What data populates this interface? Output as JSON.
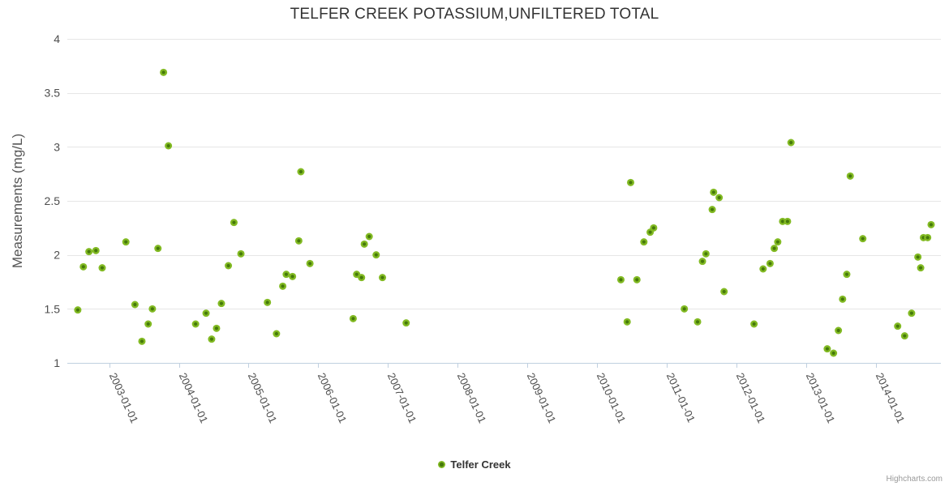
{
  "title": "TELFER CREEK POTASSIUM,UNFILTERED TOTAL",
  "legend": {
    "series_label": "Telfer Creek"
  },
  "credits": "Highcharts.com",
  "colors": {
    "marker_fill": "#82ba23",
    "marker_core": "#45790a",
    "grid": "#e6e6e6",
    "axis_line": "#c0d0e0",
    "title_text": "#333333",
    "axis_label": "#4d4d4d",
    "axis_title": "#555555",
    "legend_text": "#333333",
    "credits_text": "#999999"
  },
  "chart_data": {
    "type": "scatter",
    "title": "TELFER CREEK POTASSIUM,UNFILTERED TOTAL",
    "xlabel": "",
    "ylabel": "Measurements (mg/L)",
    "xlim": [
      2002.4,
      2014.93
    ],
    "ylim": [
      1,
      4
    ],
    "grid": "horizontal",
    "legend_position": "bottom-center",
    "y_ticks": [
      1,
      1.5,
      2,
      2.5,
      3,
      3.5,
      4
    ],
    "x_ticks": [
      {
        "year": 2003,
        "label": "2003-01-01"
      },
      {
        "year": 2004,
        "label": "2004-01-01"
      },
      {
        "year": 2005,
        "label": "2005-01-01"
      },
      {
        "year": 2006,
        "label": "2006-01-01"
      },
      {
        "year": 2007,
        "label": "2007-01-01"
      },
      {
        "year": 2008,
        "label": "2008-01-01"
      },
      {
        "year": 2009,
        "label": "2009-01-01"
      },
      {
        "year": 2010,
        "label": "2010-01-01"
      },
      {
        "year": 2011,
        "label": "2011-01-01"
      },
      {
        "year": 2012,
        "label": "2012-01-01"
      },
      {
        "year": 2013,
        "label": "2013-01-01"
      },
      {
        "year": 2014,
        "label": "2014-01-01"
      }
    ],
    "series": [
      {
        "name": "Telfer Creek",
        "points": [
          [
            2002.55,
            1.49
          ],
          [
            2002.63,
            1.89
          ],
          [
            2002.71,
            2.03
          ],
          [
            2002.81,
            2.04
          ],
          [
            2002.9,
            1.88
          ],
          [
            2003.24,
            2.12
          ],
          [
            2003.37,
            1.54
          ],
          [
            2003.47,
            1.2
          ],
          [
            2003.56,
            1.36
          ],
          [
            2003.62,
            1.5
          ],
          [
            2003.7,
            2.06
          ],
          [
            2003.78,
            3.69
          ],
          [
            2003.85,
            3.01
          ],
          [
            2004.24,
            1.36
          ],
          [
            2004.39,
            1.46
          ],
          [
            2004.47,
            1.22
          ],
          [
            2004.54,
            1.32
          ],
          [
            2004.61,
            1.55
          ],
          [
            2004.71,
            1.9
          ],
          [
            2004.79,
            2.3
          ],
          [
            2004.89,
            2.01
          ],
          [
            2005.27,
            1.56
          ],
          [
            2005.4,
            1.27
          ],
          [
            2005.49,
            1.71
          ],
          [
            2005.54,
            1.82
          ],
          [
            2005.63,
            1.8
          ],
          [
            2005.72,
            2.13
          ],
          [
            2005.75,
            2.77
          ],
          [
            2005.88,
            1.92
          ],
          [
            2006.5,
            1.41
          ],
          [
            2006.55,
            1.82
          ],
          [
            2006.62,
            1.79
          ],
          [
            2006.66,
            2.1
          ],
          [
            2006.73,
            2.17
          ],
          [
            2006.83,
            2.0
          ],
          [
            2006.92,
            1.79
          ],
          [
            2007.26,
            1.37
          ],
          [
            2010.34,
            1.77
          ],
          [
            2010.43,
            1.38
          ],
          [
            2010.48,
            2.67
          ],
          [
            2010.57,
            1.77
          ],
          [
            2010.67,
            2.12
          ],
          [
            2010.76,
            2.21
          ],
          [
            2010.81,
            2.25
          ],
          [
            2011.25,
            1.5
          ],
          [
            2011.44,
            1.38
          ],
          [
            2011.51,
            1.94
          ],
          [
            2011.56,
            2.01
          ],
          [
            2011.65,
            2.42
          ],
          [
            2011.67,
            2.58
          ],
          [
            2011.75,
            2.53
          ],
          [
            2011.82,
            1.66
          ],
          [
            2012.25,
            1.36
          ],
          [
            2012.38,
            1.87
          ],
          [
            2012.48,
            1.92
          ],
          [
            2012.54,
            2.06
          ],
          [
            2012.59,
            2.12
          ],
          [
            2012.66,
            2.31
          ],
          [
            2012.73,
            2.31
          ],
          [
            2012.78,
            3.04
          ],
          [
            2013.3,
            1.13
          ],
          [
            2013.39,
            1.09
          ],
          [
            2013.46,
            1.3
          ],
          [
            2013.52,
            1.59
          ],
          [
            2013.58,
            1.82
          ],
          [
            2013.63,
            2.73
          ],
          [
            2013.81,
            2.15
          ],
          [
            2014.31,
            1.34
          ],
          [
            2014.41,
            1.25
          ],
          [
            2014.51,
            1.46
          ],
          [
            2014.6,
            1.98
          ],
          [
            2014.64,
            1.88
          ],
          [
            2014.68,
            2.16
          ],
          [
            2014.74,
            2.16
          ],
          [
            2014.79,
            2.28
          ]
        ]
      }
    ]
  }
}
